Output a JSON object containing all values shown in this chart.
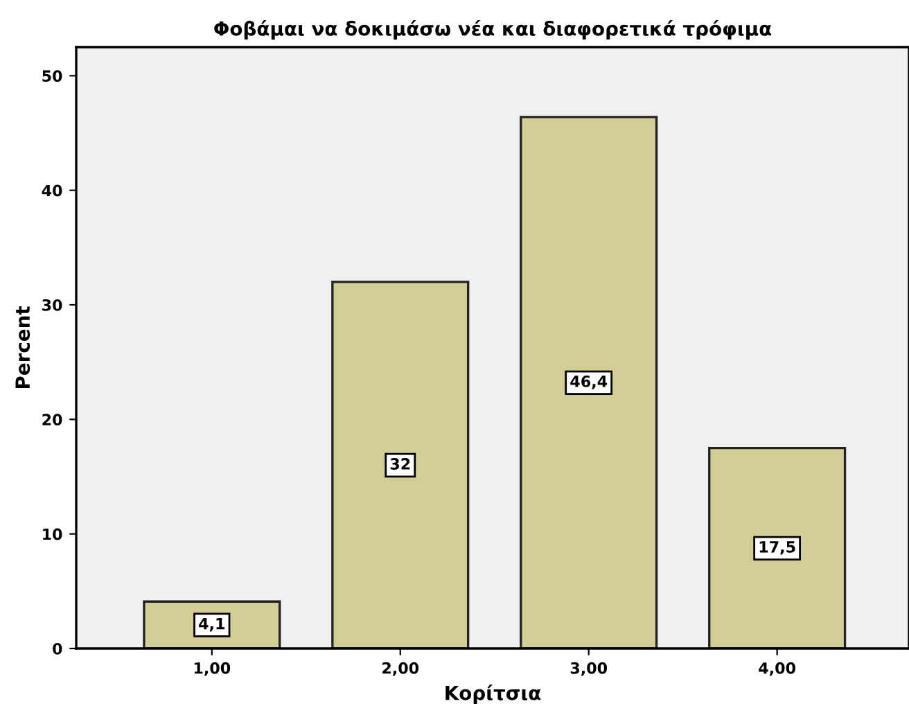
{
  "chart_data": {
    "type": "bar",
    "title": "Φοβάμαι να δοκιμάσω νέα και διαφορετικά τρόφιμα",
    "xlabel": "Κορίτσια",
    "ylabel": "Percent",
    "categories": [
      "1,00",
      "2,00",
      "3,00",
      "4,00"
    ],
    "values": [
      4.1,
      32,
      46.4,
      17.5
    ],
    "value_labels": [
      "4,1",
      "32",
      "46,4",
      "17,5"
    ],
    "color": "#d3cd96",
    "ylim": [
      0,
      52.5
    ],
    "yticks": [
      0,
      10,
      20,
      30,
      40,
      50
    ],
    "grid": false,
    "legend": false
  }
}
